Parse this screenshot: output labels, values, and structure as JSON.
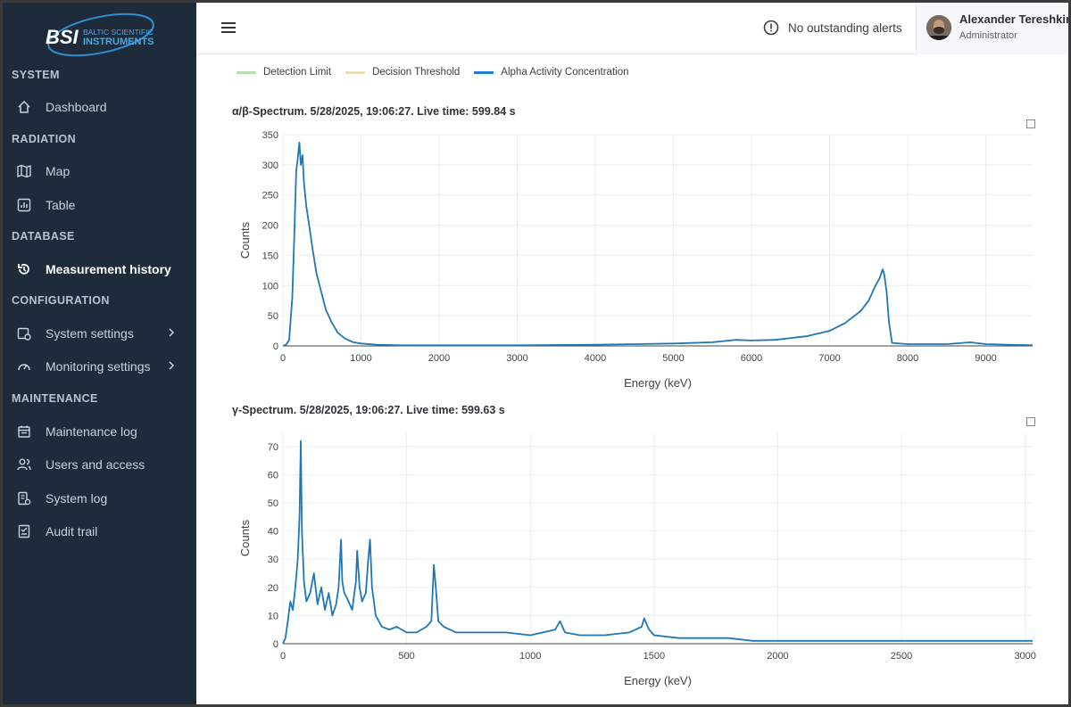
{
  "sidebar": {
    "logo": {
      "mark": "BSI",
      "line1": "BALTIC SCIENTIFIC",
      "line2": "INSTRUMENTS"
    },
    "sections": [
      {
        "title": "SYSTEM",
        "items": [
          {
            "label": "Dashboard",
            "icon": "home-icon"
          }
        ]
      },
      {
        "title": "RADIATION",
        "items": [
          {
            "label": "Map",
            "icon": "map-icon"
          },
          {
            "label": "Table",
            "icon": "chart-table-icon"
          }
        ]
      },
      {
        "title": "DATABASE",
        "items": [
          {
            "label": "Measurement history",
            "icon": "history-icon",
            "active": true
          }
        ]
      },
      {
        "title": "CONFIGURATION",
        "items": [
          {
            "label": "System settings",
            "icon": "settings-icon",
            "chevron": true
          },
          {
            "label": "Monitoring settings",
            "icon": "gauge-icon",
            "chevron": true
          }
        ]
      },
      {
        "title": "MAINTENANCE",
        "items": [
          {
            "label": "Maintenance log",
            "icon": "calendar-icon"
          },
          {
            "label": "Users and access",
            "icon": "users-icon"
          },
          {
            "label": "System log",
            "icon": "log-icon"
          },
          {
            "label": "Audit trail",
            "icon": "audit-icon"
          }
        ]
      }
    ]
  },
  "topbar": {
    "alert_text": "No outstanding alerts",
    "user": {
      "name": "Alexander Tereshkin",
      "role": "Administrator"
    }
  },
  "legend": [
    {
      "label": "Detection Limit",
      "color": "#b7dfb0"
    },
    {
      "label": "Decision Threshold",
      "color": "#eadfb4"
    },
    {
      "label": "Alpha Activity Concentration",
      "color": "#1f7cd1"
    }
  ],
  "chart_data": [
    {
      "type": "line",
      "title": "α/β-Spectrum. 5/28/2025, 19:06:27. Live time: 599.84 s",
      "xlabel": "Energy (keV)",
      "ylabel": "Counts",
      "xlim": [
        0,
        9600
      ],
      "ylim": [
        0,
        350
      ],
      "xticks": [
        0,
        1000,
        2000,
        3000,
        4000,
        5000,
        6000,
        7000,
        8000,
        9000
      ],
      "yticks": [
        0,
        50,
        100,
        150,
        200,
        250,
        300,
        350
      ],
      "grid": true,
      "color": "#1f77b4",
      "x": [
        0,
        40,
        80,
        120,
        150,
        170,
        190,
        210,
        230,
        250,
        270,
        300,
        330,
        380,
        430,
        480,
        550,
        620,
        700,
        800,
        900,
        1000,
        1200,
        1500,
        2000,
        3000,
        4000,
        4500,
        5000,
        5500,
        5800,
        6000,
        6300,
        6700,
        7000,
        7200,
        7400,
        7500,
        7580,
        7640,
        7680,
        7700,
        7730,
        7760,
        7800,
        8000,
        8500,
        8700,
        8800,
        9000,
        9600
      ],
      "y": [
        0,
        2,
        10,
        80,
        200,
        290,
        310,
        337,
        300,
        316,
        270,
        230,
        205,
        160,
        120,
        95,
        60,
        40,
        22,
        12,
        6,
        4,
        2,
        1,
        1,
        1,
        2,
        3,
        4,
        6,
        10,
        9,
        10,
        16,
        25,
        38,
        58,
        75,
        98,
        112,
        127,
        118,
        90,
        40,
        5,
        3,
        3,
        5,
        6,
        3,
        1
      ]
    },
    {
      "type": "line",
      "title": "γ-Spectrum. 5/28/2025, 19:06:27. Live time: 599.63 s",
      "xlabel": "Energy (keV)",
      "ylabel": "Counts",
      "xlim": [
        0,
        3030
      ],
      "ylim": [
        0,
        75
      ],
      "xticks": [
        0,
        500,
        1000,
        1500,
        2000,
        2500,
        3000
      ],
      "yticks": [
        0,
        10,
        20,
        30,
        40,
        50,
        60,
        70
      ],
      "grid": true,
      "color": "#1f77b4",
      "x": [
        0,
        10,
        20,
        30,
        40,
        50,
        60,
        67,
        72,
        77,
        85,
        95,
        110,
        125,
        140,
        155,
        170,
        185,
        200,
        215,
        225,
        235,
        240,
        248,
        260,
        280,
        295,
        300,
        310,
        320,
        335,
        345,
        352,
        360,
        375,
        400,
        430,
        460,
        500,
        540,
        580,
        600,
        610,
        618,
        628,
        650,
        700,
        800,
        900,
        1000,
        1100,
        1120,
        1140,
        1200,
        1300,
        1400,
        1450,
        1460,
        1480,
        1500,
        1600,
        1700,
        1800,
        1900,
        2000,
        2200,
        2500,
        2800,
        3030
      ],
      "y": [
        0,
        2,
        8,
        15,
        12,
        20,
        30,
        45,
        72,
        40,
        22,
        15,
        18,
        25,
        14,
        20,
        12,
        18,
        10,
        14,
        20,
        37,
        22,
        18,
        16,
        12,
        22,
        33,
        20,
        15,
        18,
        30,
        37,
        20,
        10,
        6,
        5,
        6,
        4,
        4,
        6,
        8,
        28,
        20,
        8,
        6,
        4,
        4,
        4,
        3,
        5,
        8,
        4,
        3,
        3,
        4,
        6,
        9,
        5,
        3,
        2,
        2,
        2,
        1,
        1,
        1,
        1,
        1,
        1
      ]
    }
  ]
}
